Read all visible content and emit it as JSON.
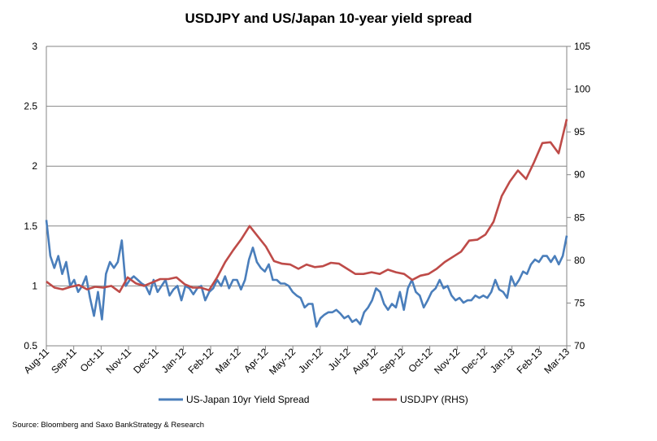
{
  "chart_data": {
    "type": "line",
    "title": "USDJPY and  US/Japan  10-year yield spread",
    "xlabel": "",
    "ylabel": "",
    "x_ticks": [
      "Aug-11",
      "Sep-11",
      "Oct-11",
      "Nov-11",
      "Dec-11",
      "Jan-12",
      "Feb-12",
      "Mar-12",
      "Apr-12",
      "May-12",
      "Jun-12",
      "Jul-12",
      "Aug-12",
      "Sep-12",
      "Oct-12",
      "Nov-12",
      "Dec-12",
      "Jan-13",
      "Feb-13",
      "Mar-13"
    ],
    "y_left": {
      "ylim": [
        0.5,
        3
      ],
      "ticks": [
        "0.5",
        "1",
        "1.5",
        "2",
        "2.5",
        "3"
      ]
    },
    "y_right": {
      "ylim": [
        70,
        105
      ],
      "ticks": [
        "70",
        "75",
        "80",
        "85",
        "90",
        "95",
        "100",
        "105"
      ]
    },
    "grid": true,
    "legend_placement": "bottom",
    "series": [
      {
        "name": "US-Japan 10yr Yield Spread",
        "axis": "left",
        "color": "#4a7ebb",
        "values": [
          1.55,
          1.25,
          1.15,
          1.25,
          1.1,
          1.2,
          1.0,
          1.05,
          0.95,
          1.0,
          1.08,
          0.9,
          0.75,
          0.95,
          0.72,
          1.1,
          1.2,
          1.15,
          1.2,
          1.38,
          1.0,
          1.05,
          1.08,
          1.05,
          1.02,
          1.0,
          0.93,
          1.05,
          0.95,
          1.0,
          1.05,
          0.92,
          0.97,
          1.0,
          0.88,
          1.0,
          0.98,
          0.93,
          0.98,
          1.0,
          0.88,
          0.95,
          0.98,
          1.05,
          1.0,
          1.08,
          0.98,
          1.05,
          1.05,
          0.97,
          1.05,
          1.22,
          1.32,
          1.2,
          1.15,
          1.12,
          1.18,
          1.05,
          1.05,
          1.02,
          1.02,
          1.0,
          0.95,
          0.92,
          0.9,
          0.82,
          0.85,
          0.85,
          0.66,
          0.73,
          0.76,
          0.78,
          0.78,
          0.8,
          0.77,
          0.73,
          0.75,
          0.7,
          0.72,
          0.68,
          0.78,
          0.82,
          0.88,
          0.98,
          0.95,
          0.85,
          0.8,
          0.85,
          0.82,
          0.95,
          0.8,
          0.98,
          1.05,
          0.95,
          0.92,
          0.82,
          0.88,
          0.95,
          0.98,
          1.05,
          0.98,
          1.0,
          0.92,
          0.88,
          0.9,
          0.86,
          0.88,
          0.88,
          0.92,
          0.9,
          0.92,
          0.9,
          0.95,
          1.05,
          0.97,
          0.95,
          0.9,
          1.08,
          1.0,
          1.05,
          1.12,
          1.1,
          1.18,
          1.22,
          1.2,
          1.25,
          1.25,
          1.2,
          1.25,
          1.18,
          1.25,
          1.42
        ]
      },
      {
        "name": "USDJPY (RHS)",
        "axis": "right",
        "color": "#be4b48",
        "values": [
          77.5,
          76.8,
          76.6,
          76.9,
          77.1,
          76.6,
          76.9,
          76.8,
          77,
          76.3,
          78,
          77.3,
          77,
          77.4,
          77.8,
          77.8,
          78,
          77.2,
          76.8,
          76.8,
          76.5,
          78,
          79.8,
          81.2,
          82.5,
          84,
          82.8,
          81.6,
          79.9,
          79.6,
          79.5,
          79,
          79.5,
          79.2,
          79.3,
          79.7,
          79.6,
          79,
          78.4,
          78.4,
          78.6,
          78.4,
          78.9,
          78.6,
          78.4,
          77.7,
          78.2,
          78.4,
          79,
          79.8,
          80.4,
          81,
          82.3,
          82.4,
          83,
          84.5,
          87.5,
          89.2,
          90.5,
          89.5,
          91.5,
          93.7,
          93.8,
          92.5,
          96.5
        ]
      }
    ],
    "source": "Source: Bloomberg and Saxo BankStrategy & Research"
  }
}
